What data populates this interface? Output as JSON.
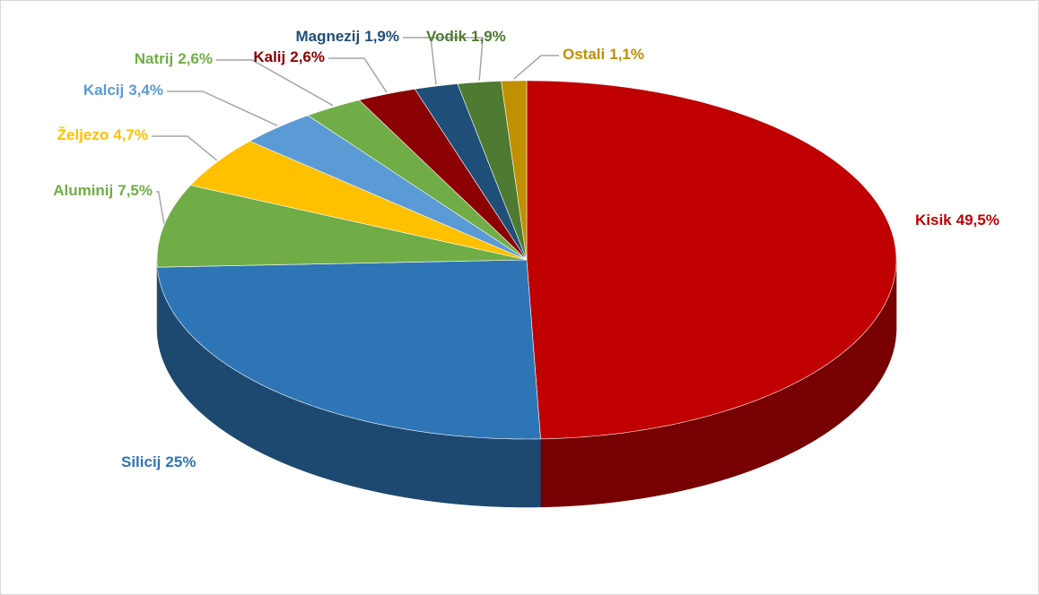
{
  "chart_data": {
    "type": "pie",
    "categories": [
      "Kisik",
      "Silicij",
      "Aluminij",
      "Željezo",
      "Kalcij",
      "Natrij",
      "Kalij",
      "Magnezij",
      "Vodik",
      "Ostali"
    ],
    "values": [
      49.5,
      25,
      7.5,
      4.7,
      3.4,
      2.6,
      2.6,
      1.9,
      1.9,
      1.1
    ],
    "value_labels": [
      "49,5%",
      "25%",
      "7,5%",
      "4,7%",
      "3,4%",
      "2,6%",
      "2,6%",
      "1,9%",
      "1,9%",
      "1,1%"
    ],
    "colors": [
      "#c00000",
      "#2e75b6",
      "#70ad47",
      "#ffc000",
      "#5b9bd5",
      "#70ad47",
      "#8b0000",
      "#1f4e79",
      "#4f7a32",
      "#bf9000"
    ]
  }
}
